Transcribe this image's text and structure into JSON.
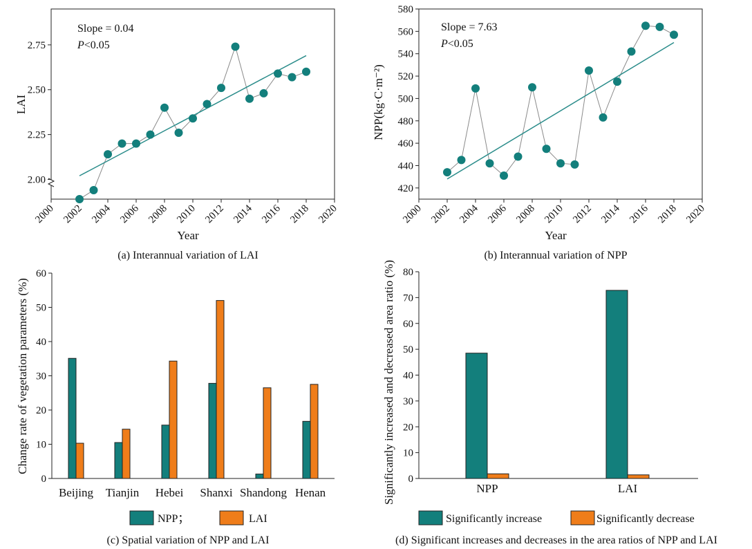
{
  "colors": {
    "teal": "#137f7c",
    "orange": "#ef7d1a",
    "line_grey": "#8a8a8a",
    "fit": "#2a8c8a"
  },
  "chart_data": [
    {
      "id": "a",
      "type": "scatter",
      "caption": "(a) Interannual variation of LAI",
      "xlabel": "Year",
      "ylabel": "LAI",
      "xlim": [
        2000,
        2020
      ],
      "xticks": [
        "2000",
        "2002",
        "2004",
        "2006",
        "2008",
        "2010",
        "2012",
        "2014",
        "2016",
        "2018",
        "2020"
      ],
      "ylim": [
        1.89,
        2.95
      ],
      "yticks": [
        "2.00",
        "2.25",
        "2.50",
        "2.75"
      ],
      "x": [
        2002,
        2003,
        2004,
        2005,
        2006,
        2007,
        2008,
        2009,
        2010,
        2011,
        2012,
        2013,
        2014,
        2015,
        2016,
        2017,
        2018
      ],
      "y": [
        1.89,
        1.94,
        2.14,
        2.2,
        2.2,
        2.25,
        2.4,
        2.26,
        2.34,
        2.42,
        2.51,
        2.74,
        2.45,
        2.48,
        2.59,
        2.57,
        2.6
      ],
      "fit": {
        "x": [
          2002,
          2018
        ],
        "y": [
          2.02,
          2.69
        ]
      },
      "annotation_slope": "Slope = 0.04",
      "annotation_p_italic": "P",
      "annotation_p_rest": "<0.05"
    },
    {
      "id": "b",
      "type": "scatter",
      "caption": "(b) Interannual variation of NPP",
      "xlabel": "Year",
      "ylabel": "NPP(kg·C·m⁻²)",
      "xlim": [
        2000,
        2020
      ],
      "xticks": [
        "2000",
        "2002",
        "2004",
        "2006",
        "2008",
        "2010",
        "2012",
        "2014",
        "2016",
        "2018",
        "2020"
      ],
      "ylim": [
        410,
        580
      ],
      "yticks": [
        "420",
        "440",
        "460",
        "480",
        "500",
        "520",
        "540",
        "560",
        "580"
      ],
      "x": [
        2002,
        2003,
        2004,
        2005,
        2006,
        2007,
        2008,
        2009,
        2010,
        2011,
        2012,
        2013,
        2014,
        2015,
        2016,
        2017,
        2018
      ],
      "y": [
        434,
        445,
        509,
        442,
        431,
        448,
        510,
        455,
        442,
        441,
        525,
        483,
        515,
        542,
        565,
        564,
        557
      ],
      "fit": {
        "x": [
          2002,
          2018
        ],
        "y": [
          428,
          550
        ]
      },
      "annotation_slope": "Slope = 7.63",
      "annotation_p_italic": "P",
      "annotation_p_rest": "<0.05"
    },
    {
      "id": "c",
      "type": "bar",
      "caption": "(c) Spatial variation of NPP and LAI",
      "xlabel": "",
      "ylabel": "Change rate of vegetation parameters (%)",
      "ylim": [
        0,
        60
      ],
      "yticks": [
        "0",
        "10",
        "20",
        "30",
        "40",
        "50",
        "60"
      ],
      "categories": [
        "Beijing",
        "Tianjin",
        "Hebei",
        "Shanxi",
        "Shandong",
        "Henan"
      ],
      "series": [
        {
          "name": "NPP；",
          "values": [
            35.1,
            10.5,
            15.6,
            27.8,
            1.3,
            16.7
          ]
        },
        {
          "name": "LAI",
          "values": [
            10.3,
            14.4,
            34.3,
            52.0,
            26.5,
            27.5
          ]
        }
      ],
      "legend": "bottom"
    },
    {
      "id": "d",
      "type": "bar",
      "caption": "(d) Significant increases and decreases in the area ratios of NPP and LAI",
      "xlabel": "",
      "ylabel": "Significantly increased and decreased area ratio (%)",
      "ylim": [
        0,
        80
      ],
      "yticks": [
        "0",
        "10",
        "20",
        "30",
        "40",
        "50",
        "60",
        "70",
        "80"
      ],
      "categories": [
        "NPP",
        "LAI"
      ],
      "series": [
        {
          "name": "Significantly increase",
          "values": [
            48.5,
            72.8
          ]
        },
        {
          "name": "Significantly decrease",
          "values": [
            1.8,
            1.4
          ]
        }
      ],
      "legend": "bottom"
    }
  ]
}
